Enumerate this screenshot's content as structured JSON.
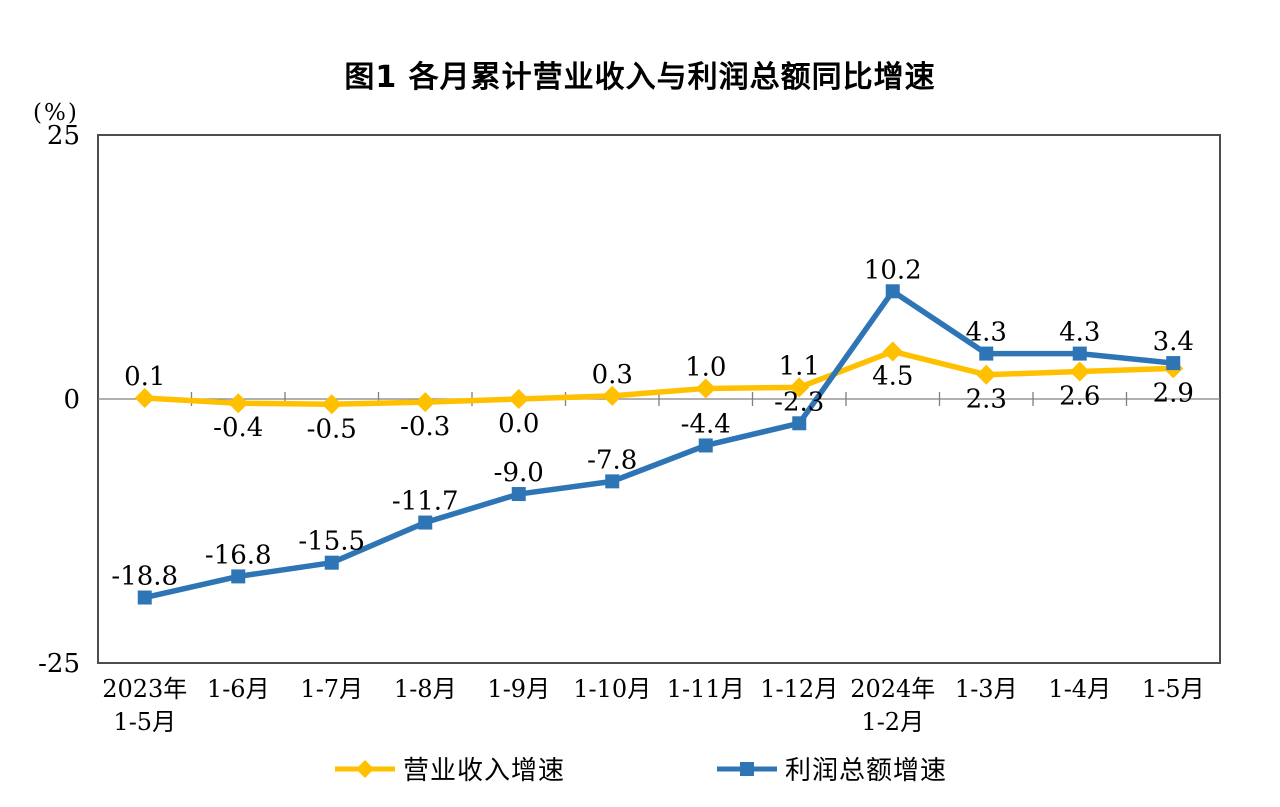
{
  "chart_data": {
    "type": "line",
    "title": "图1  各月累计营业收入与利润总额同比增速",
    "unit_label": "(%)",
    "ylabel": "",
    "xlabel": "",
    "ylim": [
      -25,
      25
    ],
    "yticks": [
      25,
      0,
      -25
    ],
    "grid": "off",
    "legend_position": "bottom",
    "axis_border_color": "#4d4d4d",
    "zero_line_color": "#808080",
    "text_color": "#000000",
    "categories": [
      "2023年\n1-5月",
      "1-6月",
      "1-7月",
      "1-8月",
      "1-9月",
      "1-10月",
      "1-11月",
      "1-12月",
      "2024年\n1-2月",
      "1-3月",
      "1-4月",
      "1-5月"
    ],
    "series": [
      {
        "name": "营业收入增速",
        "color": "#FFC000",
        "marker": "diamond",
        "values": [
          0.1,
          -0.4,
          -0.5,
          -0.3,
          0.0,
          0.3,
          1.0,
          1.1,
          4.5,
          2.3,
          2.6,
          2.9
        ],
        "label_positions": [
          "above",
          "below",
          "below",
          "below",
          "below",
          "above",
          "above",
          "above",
          "below",
          "below",
          "below",
          "below"
        ]
      },
      {
        "name": "利润总额增速",
        "color": "#2E75B6",
        "marker": "square",
        "values": [
          -18.8,
          -16.8,
          -15.5,
          -11.7,
          -9.0,
          -7.8,
          -4.4,
          -2.3,
          10.2,
          4.3,
          4.3,
          3.4
        ],
        "label_positions": [
          "above",
          "above",
          "above",
          "above",
          "above",
          "above",
          "above",
          "above",
          "above",
          "above",
          "above",
          "above"
        ]
      }
    ]
  }
}
